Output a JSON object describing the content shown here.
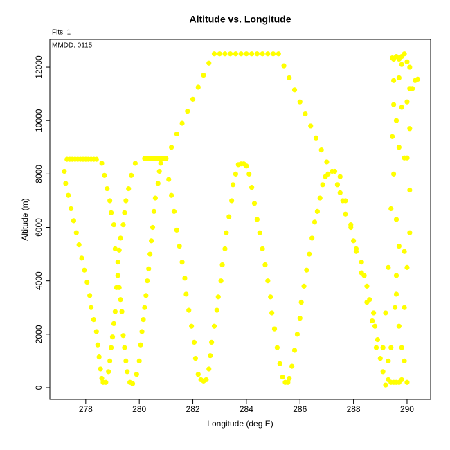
{
  "chart_data": {
    "type": "scatter",
    "title": "Altitude vs. Longitude",
    "annotations": [
      "Flts: 1",
      "MMDD: 0115"
    ],
    "x_label": "Longitude (deg E)",
    "y_label": "Altitude (m)",
    "color": "#ffff00",
    "xlim": [
      276.66,
      290.88
    ],
    "ylim": [
      -441,
      13038
    ],
    "xticks": [
      278,
      280,
      282,
      284,
      286,
      288,
      290
    ],
    "yticks": [
      0,
      2000,
      4000,
      6000,
      8000,
      10000,
      12000
    ],
    "x": [
      277.3,
      277.4,
      277.5,
      277.6,
      277.7,
      277.8,
      277.9,
      278.0,
      278.1,
      278.2,
      278.3,
      278.4,
      277.2,
      277.25,
      277.35,
      277.45,
      277.55,
      277.65,
      277.75,
      277.85,
      277.95,
      278.05,
      278.15,
      278.2,
      278.3,
      278.4,
      278.45,
      278.5,
      278.55,
      278.6,
      278.65,
      278.75,
      278.6,
      278.7,
      278.8,
      278.9,
      278.95,
      279.05,
      279.1,
      279.2,
      279.25,
      279.3,
      279.35,
      279.4,
      279.45,
      279.5,
      279.55,
      279.65,
      279.75,
      278.85,
      278.9,
      278.95,
      279.0,
      279.05,
      279.1,
      279.15,
      279.2,
      279.25,
      279.3,
      279.4,
      279.45,
      279.5,
      279.6,
      279.7,
      279.85,
      279.9,
      280.0,
      280.05,
      280.1,
      280.15,
      280.2,
      280.25,
      280.3,
      280.35,
      280.4,
      280.45,
      280.5,
      280.55,
      280.6,
      280.7,
      280.75,
      280.8,
      280.2,
      280.3,
      280.4,
      280.5,
      280.6,
      280.7,
      280.8,
      280.9,
      281.0,
      281.1,
      281.2,
      281.3,
      281.4,
      281.5,
      281.6,
      281.7,
      281.75,
      281.85,
      281.95,
      282.05,
      282.1,
      282.2,
      282.3,
      282.4,
      282.5,
      282.6,
      282.65,
      282.7,
      282.8,
      282.9,
      282.95,
      283.05,
      283.1,
      283.2,
      283.25,
      283.35,
      283.45,
      283.5,
      283.6,
      283.7,
      283.8,
      283.9,
      284.0,
      284.1,
      284.2,
      284.3,
      284.4,
      284.5,
      284.6,
      284.7,
      284.8,
      284.9,
      284.95,
      285.05,
      285.15,
      285.25,
      285.35,
      285.45,
      285.55,
      285.6,
      285.7,
      285.8,
      285.9,
      286.0,
      286.05,
      286.15,
      286.25,
      286.35,
      286.45,
      286.55,
      286.65,
      286.75,
      286.85,
      286.95,
      287.05,
      287.2,
      287.3,
      281.2,
      281.4,
      281.6,
      281.8,
      282.0,
      282.2,
      282.4,
      282.6,
      282.8,
      283.0,
      283.2,
      283.4,
      283.6,
      283.8,
      284.0,
      284.2,
      284.4,
      284.6,
      284.8,
      285.0,
      285.2,
      285.4,
      285.6,
      285.8,
      286.0,
      286.2,
      286.4,
      286.6,
      286.8,
      287.0,
      287.4,
      287.5,
      287.6,
      287.7,
      287.9,
      288.0,
      288.1,
      288.3,
      288.4,
      288.5,
      288.6,
      288.75,
      288.8,
      288.9,
      289.0,
      289.1,
      287.5,
      287.7,
      287.9,
      288.1,
      288.3,
      288.5,
      288.7,
      288.85,
      289.2,
      289.3,
      289.4,
      289.5,
      289.6,
      289.7,
      289.8,
      289.1,
      289.2,
      289.3,
      289.4,
      289.45,
      289.5,
      289.5,
      289.6,
      289.7,
      289.8,
      289.9,
      290.0,
      290.1,
      290.1,
      290.2,
      290.3,
      289.9,
      290.0,
      290.1,
      290.1,
      290.0,
      289.9,
      289.8,
      289.9,
      289.7,
      289.6,
      289.6,
      289.5,
      289.6,
      289.7,
      289.8,
      289.8,
      289.7,
      289.7,
      289.6,
      289.4,
      289.3,
      290.0,
      290.1,
      290.0,
      289.5,
      289.45,
      290.4,
      289.9,
      289.55
    ],
    "values": [
      8550,
      8550,
      8550,
      8550,
      8550,
      8550,
      8550,
      8550,
      8550,
      8550,
      8550,
      8550,
      8100,
      7650,
      7200,
      6700,
      6250,
      5800,
      5350,
      4850,
      4400,
      3950,
      3450,
      3000,
      2550,
      2100,
      1600,
      1150,
      700,
      350,
      200,
      200,
      8400,
      7950,
      7450,
      7000,
      6550,
      6100,
      5200,
      4700,
      3750,
      3300,
      2850,
      1950,
      1500,
      1000,
      600,
      200,
      150,
      600,
      1000,
      1500,
      1900,
      2400,
      2850,
      3750,
      4200,
      5150,
      5600,
      6100,
      6550,
      7000,
      7450,
      7950,
      8400,
      500,
      1000,
      1600,
      2100,
      2550,
      3000,
      3450,
      4000,
      4450,
      5000,
      5500,
      6000,
      6600,
      7100,
      7650,
      8100,
      8400,
      8580,
      8580,
      8580,
      8580,
      8580,
      8580,
      8580,
      8580,
      8580,
      7800,
      7200,
      6600,
      5900,
      5300,
      4700,
      4100,
      3500,
      2900,
      2300,
      1700,
      1100,
      500,
      300,
      250,
      300,
      700,
      1200,
      1700,
      2300,
      2900,
      3400,
      4000,
      4600,
      5200,
      5800,
      6400,
      7000,
      7600,
      8000,
      8350,
      8380,
      8380,
      8300,
      8000,
      7500,
      6900,
      6300,
      5800,
      5200,
      4600,
      4000,
      3400,
      2800,
      2200,
      1500,
      900,
      400,
      200,
      200,
      350,
      800,
      1400,
      2000,
      2600,
      3200,
      3800,
      4400,
      5000,
      5600,
      6200,
      6600,
      7100,
      7600,
      7900,
      8000,
      8100,
      8100,
      9000,
      9500,
      9900,
      10350,
      10800,
      11250,
      11700,
      12150,
      12500,
      12500,
      12500,
      12500,
      12500,
      12500,
      12500,
      12500,
      12500,
      12500,
      12500,
      12500,
      12500,
      12050,
      11600,
      11150,
      10700,
      10250,
      9800,
      9350,
      8900,
      8450,
      7600,
      7300,
      7000,
      6500,
      6000,
      5500,
      5100,
      4700,
      4200,
      3800,
      3300,
      2800,
      2300,
      1800,
      1100,
      600,
      7900,
      7000,
      6100,
      5200,
      4300,
      3200,
      2500,
      1500,
      100,
      300,
      200,
      200,
      200,
      200,
      300,
      1500,
      2800,
      4500,
      6700,
      9400,
      11500,
      12300,
      12400,
      12300,
      12400,
      12500,
      12200,
      12000,
      11200,
      11200,
      11500,
      8600,
      8600,
      7400,
      5800,
      4500,
      3000,
      1500,
      1000,
      2300,
      4200,
      6300,
      8000,
      10000,
      11600,
      12100,
      10500,
      9000,
      5300,
      3500,
      1500,
      1000,
      200,
      9700,
      10700,
      10600,
      12350,
      11550,
      5100,
      3000
    ]
  }
}
